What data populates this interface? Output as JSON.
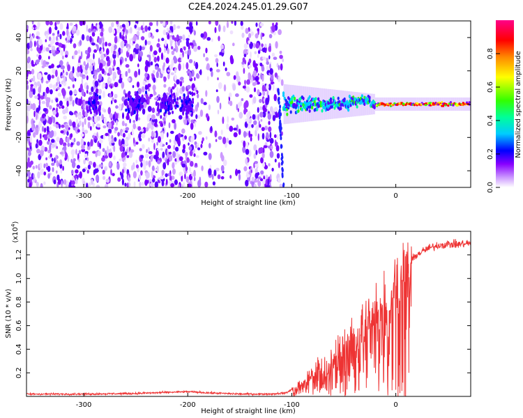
{
  "title": "C2E4.2024.245.01.29.G07",
  "chart_data": [
    {
      "type": "heatmap",
      "xlabel": "Height of straight line (km)",
      "ylabel": "Frequency (Hz)",
      "xlim": [
        -355,
        72
      ],
      "ylim": [
        -50,
        50
      ],
      "xticks": [
        -300,
        -200,
        -100,
        0
      ],
      "yticks": [
        40,
        20,
        0,
        -20,
        -40
      ],
      "colorbar": {
        "label": "Normalized spectral amplitude",
        "ticks": [
          "0.0",
          "0.2",
          "0.4",
          "0.6",
          "0.8"
        ],
        "range": [
          0,
          1
        ],
        "colors": [
          "#ffffff",
          "#cc99ff",
          "#8800ff",
          "#0000ff",
          "#00ccff",
          "#00ff99",
          "#33ff00",
          "#ffff00",
          "#ff8800",
          "#ff0000",
          "#ff0088"
        ]
      },
      "regions": [
        {
          "name": "noise",
          "x": [
            -355,
            -108
          ],
          "freq": [
            -50,
            50
          ],
          "amplitude": 0.1
        },
        {
          "name": "signal-onset",
          "x": [
            -108,
            -20
          ],
          "center_freq_hz": 0,
          "half_width_hz_start": 8,
          "half_width_hz_end": 3,
          "amplitude": [
            0.3,
            0.5
          ]
        },
        {
          "name": "clean-signal",
          "x": [
            -20,
            72
          ],
          "center_freq_hz": 0,
          "half_width_hz": 3,
          "amplitude": [
            0.5,
            0.9
          ]
        }
      ]
    },
    {
      "type": "line",
      "xlabel": "Height of straight line (km)",
      "ylabel": "SNR (10 * v/v)",
      "y_multiplier": "(x10",
      "y_multiplier_exp": "4",
      "y_multiplier_close": ")",
      "xlim": [
        -355,
        72
      ],
      "ylim": [
        0,
        1.4
      ],
      "xticks": [
        -300,
        -200,
        -100,
        0
      ],
      "yticks": [
        "0.2",
        "0.4",
        "0.6",
        "0.8",
        "1.0",
        "1.2"
      ],
      "color": "#ee3333",
      "series": [
        {
          "name": "SNR",
          "x": [
            -355,
            -300,
            -250,
            -200,
            -180,
            -150,
            -120,
            -105,
            -100,
            -90,
            -80,
            -70,
            -60,
            -50,
            -40,
            -30,
            -20,
            -10,
            0,
            10,
            20,
            30,
            40,
            50,
            60,
            72
          ],
          "y": [
            0.02,
            0.02,
            0.025,
            0.04,
            0.03,
            0.02,
            0.02,
            0.03,
            0.06,
            0.12,
            0.2,
            0.25,
            0.3,
            0.4,
            0.5,
            0.6,
            0.72,
            0.85,
            0.98,
            1.1,
            1.2,
            1.25,
            1.28,
            1.29,
            1.29,
            1.3
          ]
        }
      ]
    }
  ]
}
